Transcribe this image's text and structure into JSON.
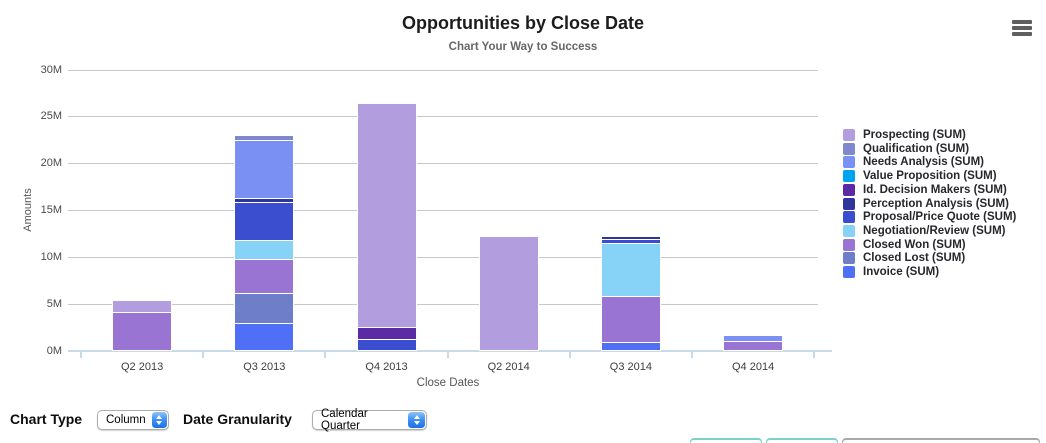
{
  "header": {
    "title": "Opportunities by Close Date",
    "subtitle": "Chart Your Way to Success",
    "menu_icon": "hamburger-icon"
  },
  "chart_data": {
    "type": "bar",
    "stacked": true,
    "stack_order": "bottom-of-stack = last series in list",
    "title": "Opportunities by Close Date",
    "subtitle": "Chart Your Way to Success",
    "xlabel": "Close Dates",
    "ylabel": "Amounts",
    "unit": "M (millions)",
    "ylim": [
      0,
      30
    ],
    "y_ticks": [
      "0M",
      "5M",
      "10M",
      "15M",
      "20M",
      "25M",
      "30M"
    ],
    "grid": true,
    "legend_position": "right",
    "categories": [
      "Q2 2013",
      "Q3 2013",
      "Q4 2013",
      "Q2 2014",
      "Q3 2014",
      "Q4 2014"
    ],
    "series": [
      {
        "name": "Prospecting (SUM)",
        "color": "#b29dde",
        "values": [
          1.1,
          0,
          23.8,
          12.1,
          0,
          0
        ]
      },
      {
        "name": "Qualification (SUM)",
        "color": "#7e89cd",
        "values": [
          0,
          0.5,
          0,
          0,
          0,
          0
        ]
      },
      {
        "name": "Needs Analysis (SUM)",
        "color": "#7b90f3",
        "values": [
          0,
          6.2,
          0,
          0,
          0,
          0.45
        ]
      },
      {
        "name": "Value Proposition (SUM)",
        "color": "#00a3ef",
        "values": [
          0,
          0,
          0,
          0,
          0,
          0
        ]
      },
      {
        "name": "Id. Decision Makers (SUM)",
        "color": "#5b2ba6",
        "values": [
          0,
          0,
          1.3,
          0,
          0,
          0
        ]
      },
      {
        "name": "Perception Analysis (SUM)",
        "color": "#2f359c",
        "values": [
          0,
          0.4,
          0,
          0,
          0.3,
          0
        ]
      },
      {
        "name": "Proposal/Price Quote (SUM)",
        "color": "#3b4ed0",
        "values": [
          0,
          4.1,
          1.2,
          0,
          0.4,
          0
        ]
      },
      {
        "name": "Negotiation/Review (SUM)",
        "color": "#87d3f8",
        "values": [
          0,
          2.0,
          0,
          0,
          5.6,
          0
        ]
      },
      {
        "name": "Closed Won (SUM)",
        "color": "#9a74d3",
        "values": [
          4.1,
          3.6,
          0,
          0,
          4.9,
          1.0
        ]
      },
      {
        "name": "Closed Lost (SUM)",
        "color": "#6e7ec8",
        "values": [
          0,
          3.2,
          0,
          0,
          0,
          0
        ]
      },
      {
        "name": "Invoice (SUM)",
        "color": "#4f6ff7",
        "values": [
          0,
          2.9,
          0,
          0,
          0.9,
          0
        ]
      }
    ],
    "totals": [
      5.2,
      22.9,
      26.3,
      12.1,
      12.1,
      1.45
    ]
  },
  "controls": {
    "chart_type_label": "Chart Type",
    "chart_type_value": "Column",
    "date_granularity_label": "Date Granularity",
    "date_granularity_value": "Calendar Quarter"
  },
  "footer_partials": {
    "teal_accent_color": "#7ed0cc",
    "gray_accent_color": "#a9a9a9"
  }
}
